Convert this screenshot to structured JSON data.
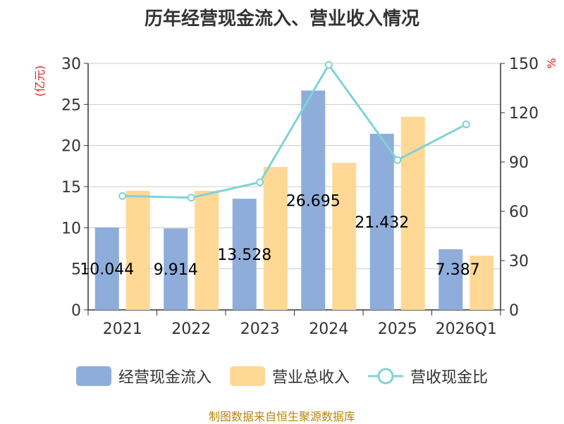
{
  "title": "历年经营现金流入、营业收入情况",
  "source": "制图数据来自恒生聚源数据库",
  "colors": {
    "cash_inflow": "#8eaddb",
    "revenue": "#ffd896",
    "ratio": "#7fd3d6",
    "axis": "#333333",
    "grid": "#cccccc",
    "unit": "#e02020"
  },
  "chart_data": {
    "type": "bar",
    "categories": [
      "2021",
      "2022",
      "2023",
      "2024",
      "2025",
      "2026Q1"
    ],
    "y_left": {
      "unit": "(亿元)",
      "ylim": [
        0,
        30
      ],
      "ticks": [
        0,
        5,
        10,
        15,
        20,
        25,
        30
      ]
    },
    "y_right": {
      "unit": "%",
      "ylim": [
        0,
        150
      ],
      "ticks": [
        0,
        30,
        60,
        90,
        120,
        150
      ]
    },
    "grid": true,
    "legend_position": "bottom",
    "series": [
      {
        "name": "经营现金流入",
        "type": "bar",
        "axis": "left",
        "values": [
          10.044,
          9.914,
          13.528,
          26.695,
          21.432,
          7.387
        ],
        "labels": [
          "10.044",
          "9.914",
          "13.528",
          "26.695",
          "21.432",
          "7.387"
        ]
      },
      {
        "name": "营业总收入",
        "type": "bar",
        "axis": "left",
        "values": [
          14.5,
          14.5,
          17.4,
          17.9,
          23.5,
          6.6
        ]
      },
      {
        "name": "营收现金比",
        "type": "line",
        "axis": "right",
        "values": [
          69.3,
          68.3,
          77.7,
          149.1,
          91.2,
          112.9
        ]
      }
    ]
  }
}
